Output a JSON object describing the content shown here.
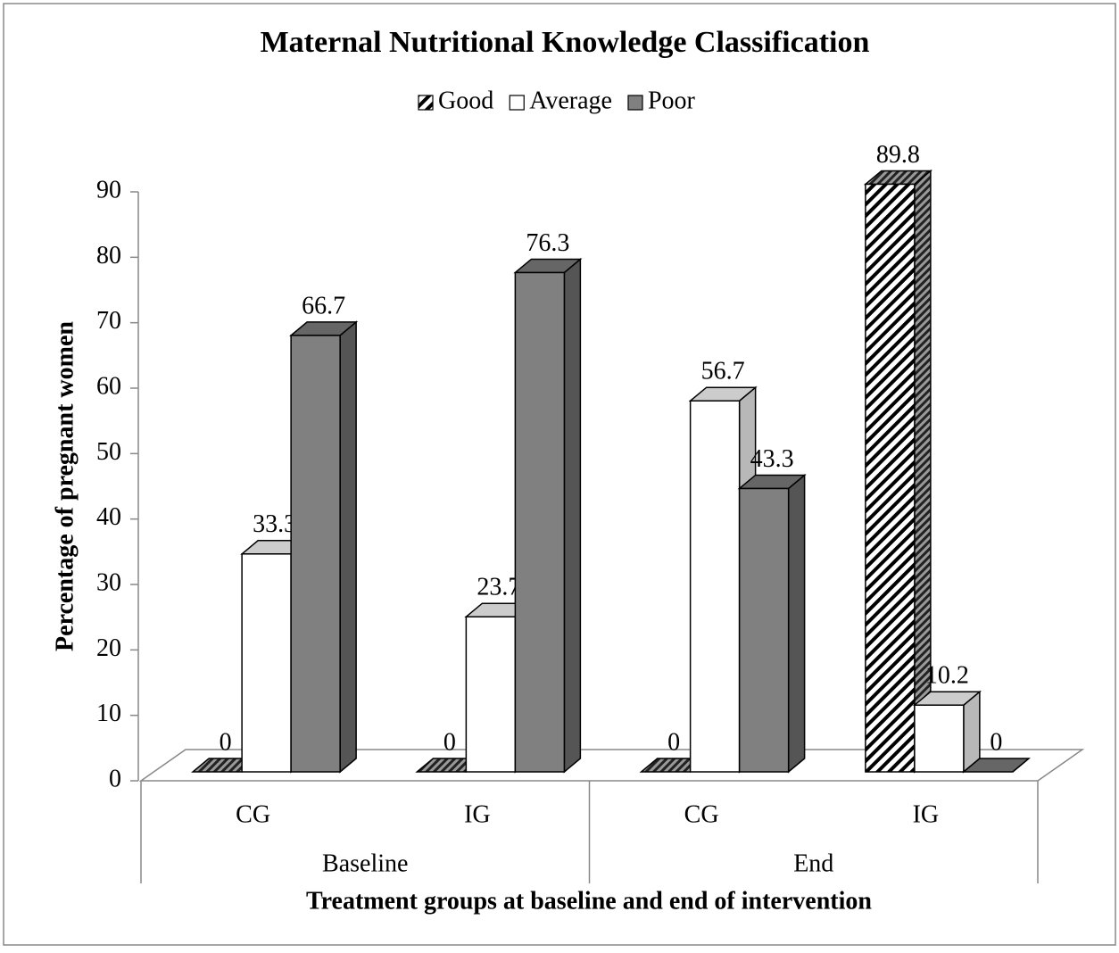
{
  "chart_data": {
    "type": "bar",
    "title": "Maternal Nutritional Knowledge Classification",
    "x_label": "Treatment groups at baseline and end of intervention",
    "y_label": "Percentage of pregnant women",
    "categories": [
      "CG",
      "IG",
      "CG",
      "IG"
    ],
    "category_groups": [
      "Baseline",
      "End"
    ],
    "series": [
      {
        "name": "Good",
        "color": "#ffffff",
        "hatch": true,
        "values": [
          0,
          0,
          0,
          89.8
        ]
      },
      {
        "name": "Average",
        "color": "#ffffff",
        "hatch": false,
        "values": [
          33.3,
          23.7,
          56.7,
          10.2
        ]
      },
      {
        "name": "Poor",
        "color": "#808080",
        "hatch": false,
        "values": [
          66.7,
          76.3,
          43.3,
          0
        ]
      }
    ],
    "ylim": [
      0,
      90
    ],
    "yticks": [
      0,
      10,
      20,
      30,
      40,
      50,
      60,
      70,
      80,
      90
    ],
    "legend": "top",
    "grid": false
  }
}
